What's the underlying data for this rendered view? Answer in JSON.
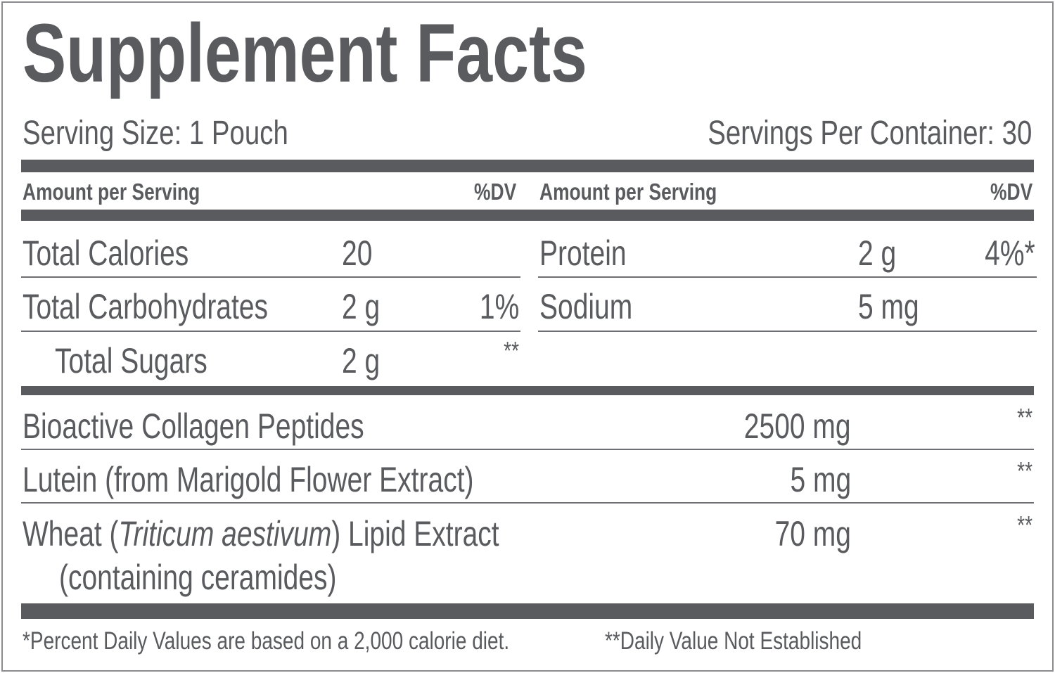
{
  "title": "Supplement Facts",
  "serving_size": "Serving Size: 1 Pouch",
  "servings_per_container": "Servings Per Container: 30",
  "tables": [
    {
      "header": {
        "amount": "Amount per Serving",
        "dv": "%DV"
      },
      "rows": [
        {
          "name": "Total Calories",
          "amount": "20"
        },
        {
          "name": "Total Carbohydrates",
          "amount": "2 g",
          "dv": "1%"
        },
        {
          "name": "Total Sugars",
          "amount": "2 g",
          "dv": "**"
        }
      ]
    },
    {
      "header": {
        "amount": "Amount per Serving",
        "dv": "%DV"
      },
      "rows": [
        {
          "name": "Protein",
          "amount": "2 g",
          "dv": "4%*"
        },
        {
          "name": "Sodium",
          "amount": "5 mg"
        }
      ]
    }
  ],
  "ingredients": [
    {
      "name": "Bioactive Collagen Peptides",
      "amount": "2500 mg",
      "dv": "**"
    },
    {
      "name": "Lutein (from Marigold Flower Extract)",
      "amount": "5 mg",
      "dv": "**"
    },
    {
      "name_parts": [
        "Wheat (",
        "Triticum aestivum",
        ") Lipid Extract"
      ],
      "name_line2": "(containing ceramides)",
      "amount": "70 mg",
      "dv": "**"
    }
  ],
  "footnotes": [
    "*Percent Daily Values are based on a 2,000 calorie diet.",
    "**Daily Value Not Established"
  ]
}
